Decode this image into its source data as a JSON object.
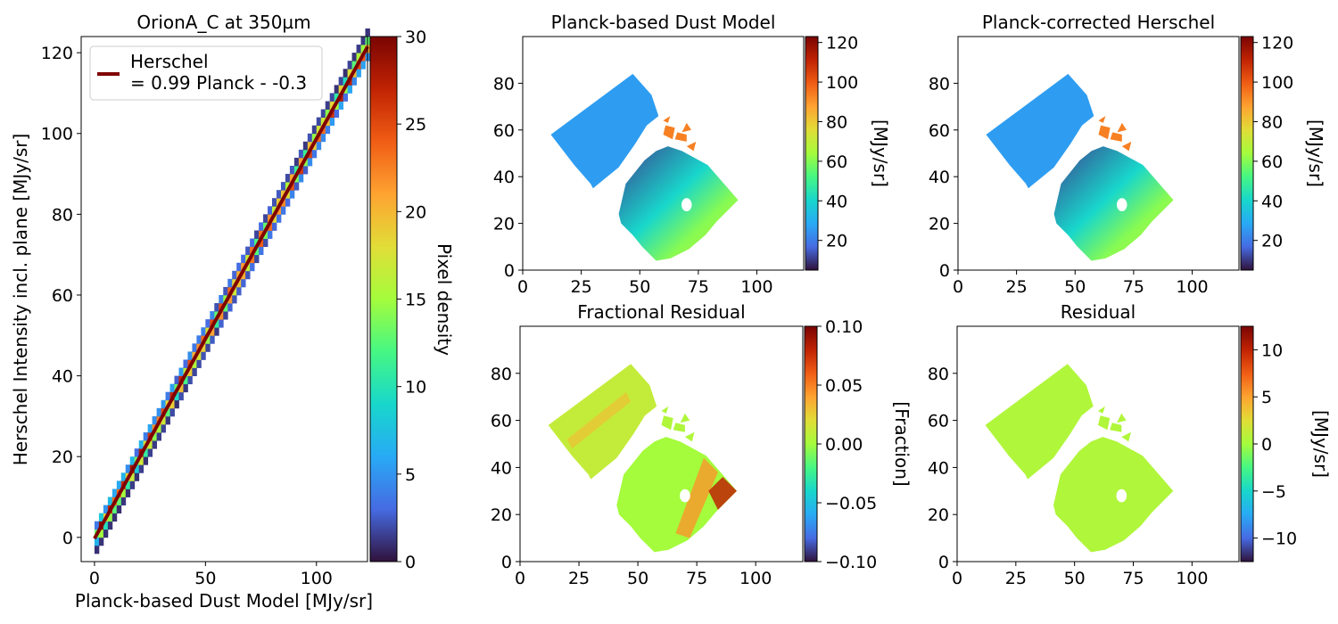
{
  "chart_data": [
    {
      "type": "heatmap",
      "title": "OrionA_C at 350µm",
      "xlabel": "Planck-based Dust Model [MJy/sr]",
      "ylabel": "Herschel Intensity incl. plane [MJy/sr]",
      "xlim": [
        -6,
        123
      ],
      "ylim": [
        -6,
        124
      ],
      "xticks": [
        0,
        50,
        100
      ],
      "yticks": [
        0,
        20,
        40,
        60,
        80,
        100,
        120
      ],
      "colorbar": {
        "label": "Pixel density",
        "range": [
          0,
          30
        ],
        "ticks": [
          0,
          5,
          10,
          15,
          20,
          25,
          30
        ],
        "colormap": "turbo"
      },
      "legend": {
        "placement": "top-left",
        "entry": "Herschel\n= 0.99 Planck - -0.3",
        "line_lines": [
          "Herschel",
          "= 0.99 Planck - -0.3"
        ],
        "line_color": "#800000"
      },
      "fit": {
        "slope": 0.99,
        "intercept": -0.3,
        "x_range": [
          0,
          123
        ]
      },
      "density_band": {
        "x_range": [
          0,
          123
        ],
        "bin": 2,
        "half_width": 3
      }
    },
    {
      "type": "heatmap",
      "title": "Planck-based Dust Model",
      "xlim": [
        0,
        120
      ],
      "ylim": [
        0,
        100
      ],
      "xticks": [
        0,
        25,
        50,
        75,
        100
      ],
      "yticks": [
        0,
        20,
        40,
        60,
        80
      ],
      "colorbar": {
        "label": "[MJy/sr]",
        "range": [
          5,
          123
        ],
        "ticks": [
          20,
          40,
          60,
          80,
          100,
          120
        ],
        "colormap": "turbo"
      }
    },
    {
      "type": "heatmap",
      "title": "Planck-corrected Herschel",
      "xlim": [
        0,
        120
      ],
      "ylim": [
        0,
        100
      ],
      "xticks": [
        0,
        25,
        50,
        75,
        100
      ],
      "yticks": [
        0,
        20,
        40,
        60,
        80
      ],
      "colorbar": {
        "label": "[MJy/sr]",
        "range": [
          5,
          123
        ],
        "ticks": [
          20,
          40,
          60,
          80,
          100,
          120
        ],
        "colormap": "turbo"
      }
    },
    {
      "type": "heatmap",
      "title": "Fractional Residual",
      "xlim": [
        0,
        120
      ],
      "ylim": [
        0,
        100
      ],
      "xticks": [
        0,
        25,
        50,
        75,
        100
      ],
      "yticks": [
        0,
        20,
        40,
        60,
        80
      ],
      "colorbar": {
        "label": "[Fraction]",
        "range": [
          -0.1,
          0.1
        ],
        "ticks": [
          -0.1,
          -0.05,
          0.0,
          0.05,
          0.1
        ],
        "tick_labels": [
          "−0.10",
          "−0.05",
          "0.00",
          "0.05",
          "0.10"
        ],
        "colormap": "turbo"
      }
    },
    {
      "type": "heatmap",
      "title": "Residual",
      "xlim": [
        0,
        120
      ],
      "ylim": [
        0,
        100
      ],
      "xticks": [
        0,
        25,
        50,
        75,
        100
      ],
      "yticks": [
        0,
        20,
        40,
        60,
        80
      ],
      "colorbar": {
        "label": "[MJy/sr]",
        "range": [
          -12.5,
          12.5
        ],
        "ticks": [
          -10,
          -5,
          0,
          5,
          10
        ],
        "tick_labels": [
          "−10",
          "−5",
          "0",
          "5",
          "10"
        ],
        "colormap": "turbo"
      }
    }
  ],
  "map_region": {
    "left_tile": [
      [
        12,
        58
      ],
      [
        47,
        84
      ],
      [
        55,
        75
      ],
      [
        58,
        66
      ],
      [
        53,
        62
      ],
      [
        48,
        54
      ],
      [
        41,
        44
      ],
      [
        30,
        35
      ],
      [
        29,
        37
      ],
      [
        22,
        45
      ]
    ],
    "right_tile": [
      [
        41,
        24
      ],
      [
        44,
        37
      ],
      [
        48,
        42
      ],
      [
        52,
        47
      ],
      [
        57,
        51
      ],
      [
        62,
        53
      ],
      [
        68,
        51
      ],
      [
        79,
        45
      ],
      [
        92,
        30
      ],
      [
        83,
        21
      ],
      [
        78,
        15
      ],
      [
        71,
        9
      ],
      [
        63,
        5
      ],
      [
        57,
        4
      ],
      [
        51,
        10
      ],
      [
        47,
        15
      ],
      [
        42,
        20
      ]
    ],
    "hole": [
      70,
      28,
      2.2,
      2.8
    ],
    "fragments": [
      [
        [
          60,
          58
        ],
        [
          64,
          56
        ],
        [
          65,
          61
        ],
        [
          61,
          62
        ]
      ],
      [
        [
          65,
          56
        ],
        [
          70,
          55
        ],
        [
          70,
          58
        ],
        [
          66,
          59
        ]
      ],
      [
        [
          68,
          59
        ],
        [
          72,
          60
        ],
        [
          70,
          63
        ]
      ],
      [
        [
          60,
          64
        ],
        [
          62,
          63
        ],
        [
          63,
          66
        ]
      ],
      [
        [
          70,
          53
        ],
        [
          73,
          51
        ],
        [
          74,
          55
        ]
      ]
    ],
    "gradient_center": [
      80,
      28
    ]
  }
}
